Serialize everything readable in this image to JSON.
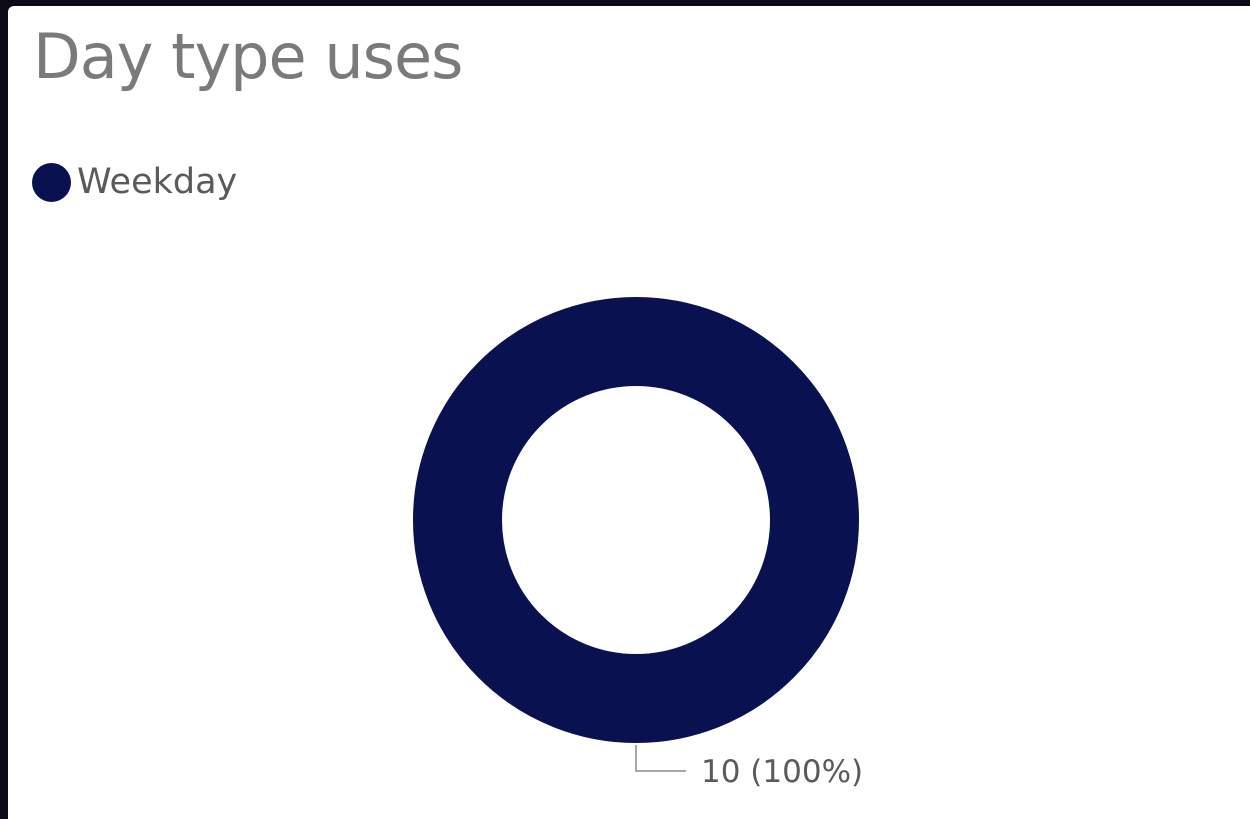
{
  "chart_data": {
    "type": "pie",
    "title": "Day type uses",
    "donut": true,
    "categories": [
      "Weekday"
    ],
    "values": [
      10
    ],
    "colors": [
      "#0a1150"
    ],
    "data_labels": [
      "10 (100%)"
    ],
    "legend": {
      "placement": "top-left",
      "entries": [
        "Weekday"
      ]
    }
  }
}
